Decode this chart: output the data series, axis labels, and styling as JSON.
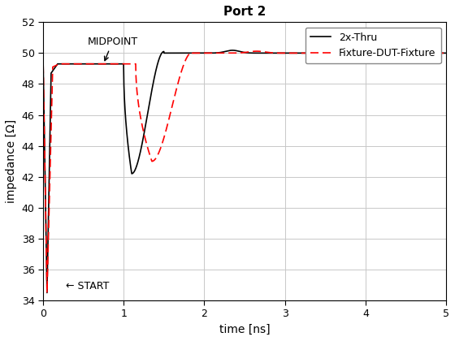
{
  "title": "Port 2",
  "xlabel": "time [ns]",
  "ylabel": "impedance [Ω]",
  "xlim": [
    0,
    5
  ],
  "ylim": [
    34,
    52
  ],
  "yticks": [
    34,
    36,
    38,
    40,
    42,
    44,
    46,
    48,
    50,
    52
  ],
  "xticks": [
    0,
    1,
    2,
    3,
    4,
    5
  ],
  "legend": [
    "2x-Thru",
    "Fixture-DUT-Fixture"
  ],
  "line1_color": "#000000",
  "line2_color": "#ff0000",
  "midpoint_text": "MIDPOINT",
  "start_text": "← START",
  "background_color": "#ffffff",
  "grid_color": "#c8c8c8"
}
